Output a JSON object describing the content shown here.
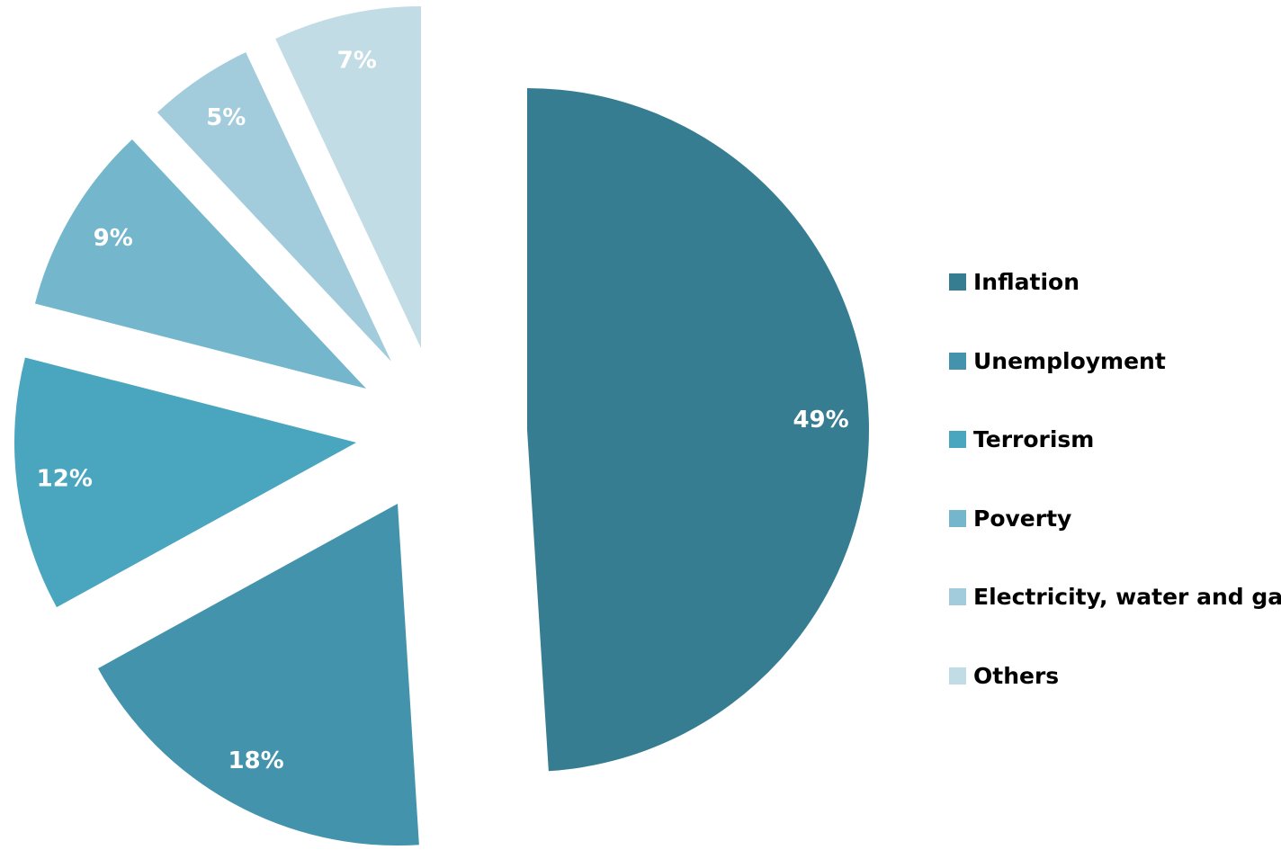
{
  "chart_data": {
    "type": "pie",
    "style": "exploded",
    "start_angle": "12 o'clock, clockwise",
    "legend_position": "right",
    "slices": [
      {
        "name": "Inflation",
        "value": 49,
        "label": "49%",
        "color": "#367D91"
      },
      {
        "name": "Unemployment",
        "value": 18,
        "label": "18%",
        "color": "#4293AB"
      },
      {
        "name": "Terrorism",
        "value": 12,
        "label": "12%",
        "color": "#4AA6BF"
      },
      {
        "name": "Poverty",
        "value": 9,
        "label": "9%",
        "color": "#74B7CD"
      },
      {
        "name": "Electricity, water and gas",
        "value": 5,
        "label": "5%",
        "color": "#A2CBDB"
      },
      {
        "name": "Others",
        "value": 7,
        "label": "7%",
        "color": "#C2DCE5"
      }
    ]
  }
}
